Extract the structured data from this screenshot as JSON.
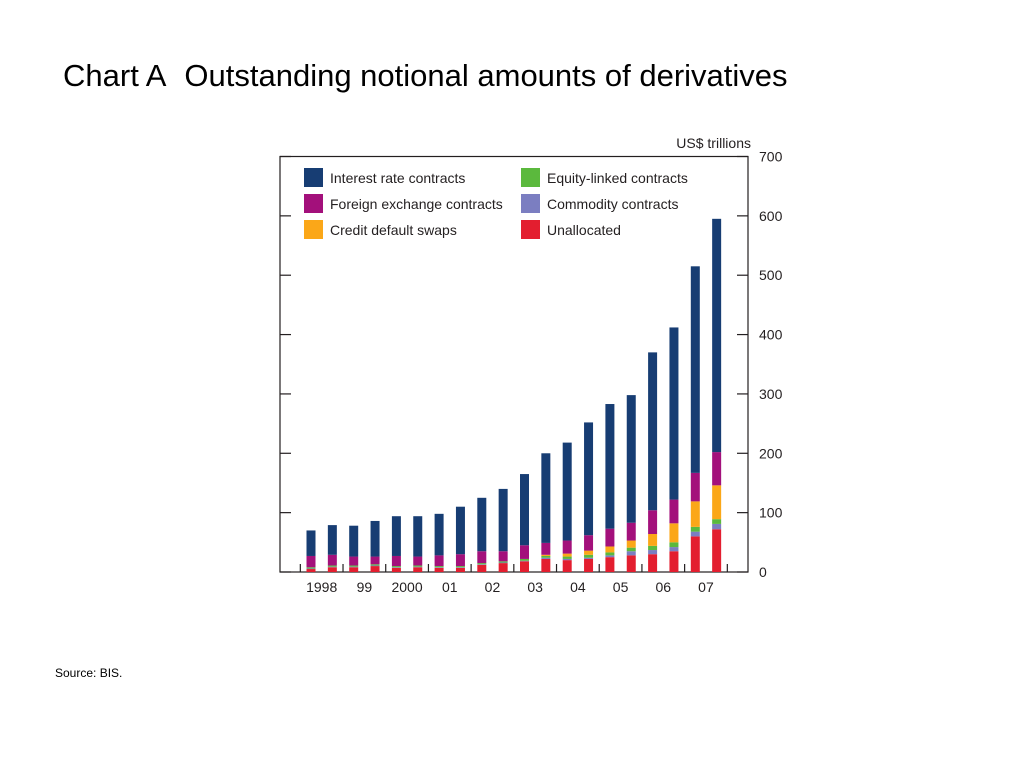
{
  "slide": {
    "title_prefix": "Chart A",
    "title": "Outstanding notional amounts of derivatives",
    "source": "Source:  BIS."
  },
  "chart_data": {
    "type": "bar",
    "stacked": true,
    "unit": "US$ trillions",
    "ylim": [
      0,
      700
    ],
    "y_ticks": [
      0,
      100,
      200,
      300,
      400,
      500,
      600,
      700
    ],
    "x_tick_labels": [
      "1998",
      "99",
      "2000",
      "01",
      "02",
      "03",
      "04",
      "05",
      "06",
      "07"
    ],
    "periods": [
      "1998 H1",
      "1998 H2",
      "1999 H1",
      "1999 H2",
      "2000 H1",
      "2000 H2",
      "2001 H1",
      "2001 H2",
      "2002 H1",
      "2002 H2",
      "2003 H1",
      "2003 H2",
      "2004 H1",
      "2004 H2",
      "2005 H1",
      "2005 H2",
      "2006 H1",
      "2006 H2",
      "2007 H1",
      "2007 H2"
    ],
    "legend": {
      "placement": "top-left, inside plot, two columns"
    },
    "series": [
      {
        "name": "Unallocated",
        "color": "#e31e2f",
        "values": [
          5,
          8,
          8,
          10,
          7,
          8,
          7,
          7,
          12,
          15,
          18,
          22,
          20,
          22,
          25,
          28,
          30,
          35,
          60,
          72
        ]
      },
      {
        "name": "Commodity contracts",
        "color": "#7b7ec1",
        "values": [
          1,
          1,
          1,
          1,
          1,
          1,
          1,
          1,
          1,
          1,
          1,
          2,
          2,
          2,
          3,
          7,
          7,
          7,
          8,
          9
        ]
      },
      {
        "name": "Equity-linked contracts",
        "color": "#5bb93d",
        "values": [
          2,
          2,
          2,
          2,
          2,
          2,
          2,
          2,
          2,
          2,
          3,
          3,
          4,
          5,
          5,
          6,
          7,
          8,
          8,
          8
        ]
      },
      {
        "name": "Credit default swaps",
        "color": "#fba718",
        "values": [
          0,
          0,
          0,
          0,
          0,
          0,
          0,
          0,
          0,
          0,
          0,
          2,
          5,
          7,
          10,
          12,
          20,
          32,
          43,
          57
        ]
      },
      {
        "name": "Foreign exchange contracts",
        "color": "#a3107b",
        "values": [
          19,
          18,
          15,
          13,
          17,
          15,
          18,
          20,
          20,
          17,
          23,
          20,
          22,
          26,
          30,
          30,
          40,
          40,
          48,
          56
        ]
      },
      {
        "name": "Interest rate contracts",
        "color": "#173d73",
        "values": [
          43,
          50,
          52,
          60,
          67,
          68,
          70,
          80,
          90,
          105,
          120,
          151,
          165,
          190,
          210,
          215,
          266,
          290,
          348,
          393
        ]
      }
    ]
  }
}
